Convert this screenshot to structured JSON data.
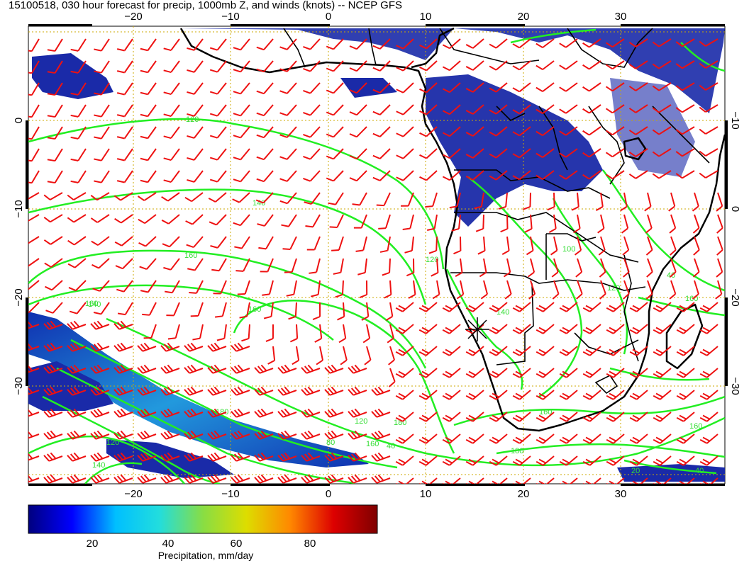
{
  "title": "15100518, 030 hour forecast for precip, 1000mb Z, and winds (knots) -- NCEP GFS",
  "lon_ticks_top": [
    "−20",
    "−10",
    "0",
    "10",
    "20",
    "30"
  ],
  "lon_ticks_bottom": [
    "−20",
    "−10",
    "0",
    "10",
    "20",
    "30"
  ],
  "lat_ticks_left": [
    "0",
    "−10",
    "−20",
    "−30"
  ],
  "lat_ticks_right": [
    "0",
    "−10",
    "−20",
    "−30"
  ],
  "contour_labels": [
    "120",
    "140",
    "160",
    "180",
    "160",
    "140",
    "120",
    "160",
    "180",
    "80",
    "140",
    "120",
    "40",
    "180",
    "100",
    "120",
    "40",
    "160",
    "160",
    "20",
    "40",
    "160",
    "140",
    "120",
    "180"
  ],
  "colorbar": {
    "label": "Precipitation, mm/day",
    "ticks": [
      "20",
      "40",
      "60",
      "80"
    ],
    "colors": [
      "#00007f",
      "#0000ff",
      "#00bfff",
      "#22dddd",
      "#88dd44",
      "#dddd00",
      "#ff8800",
      "#dd0000",
      "#7f0000"
    ]
  },
  "colors": {
    "contour": "#22ee22",
    "barb": "#ee1111",
    "coast": "#000000",
    "grid": "#ccaa00",
    "precip_low": "#1020a0"
  }
}
